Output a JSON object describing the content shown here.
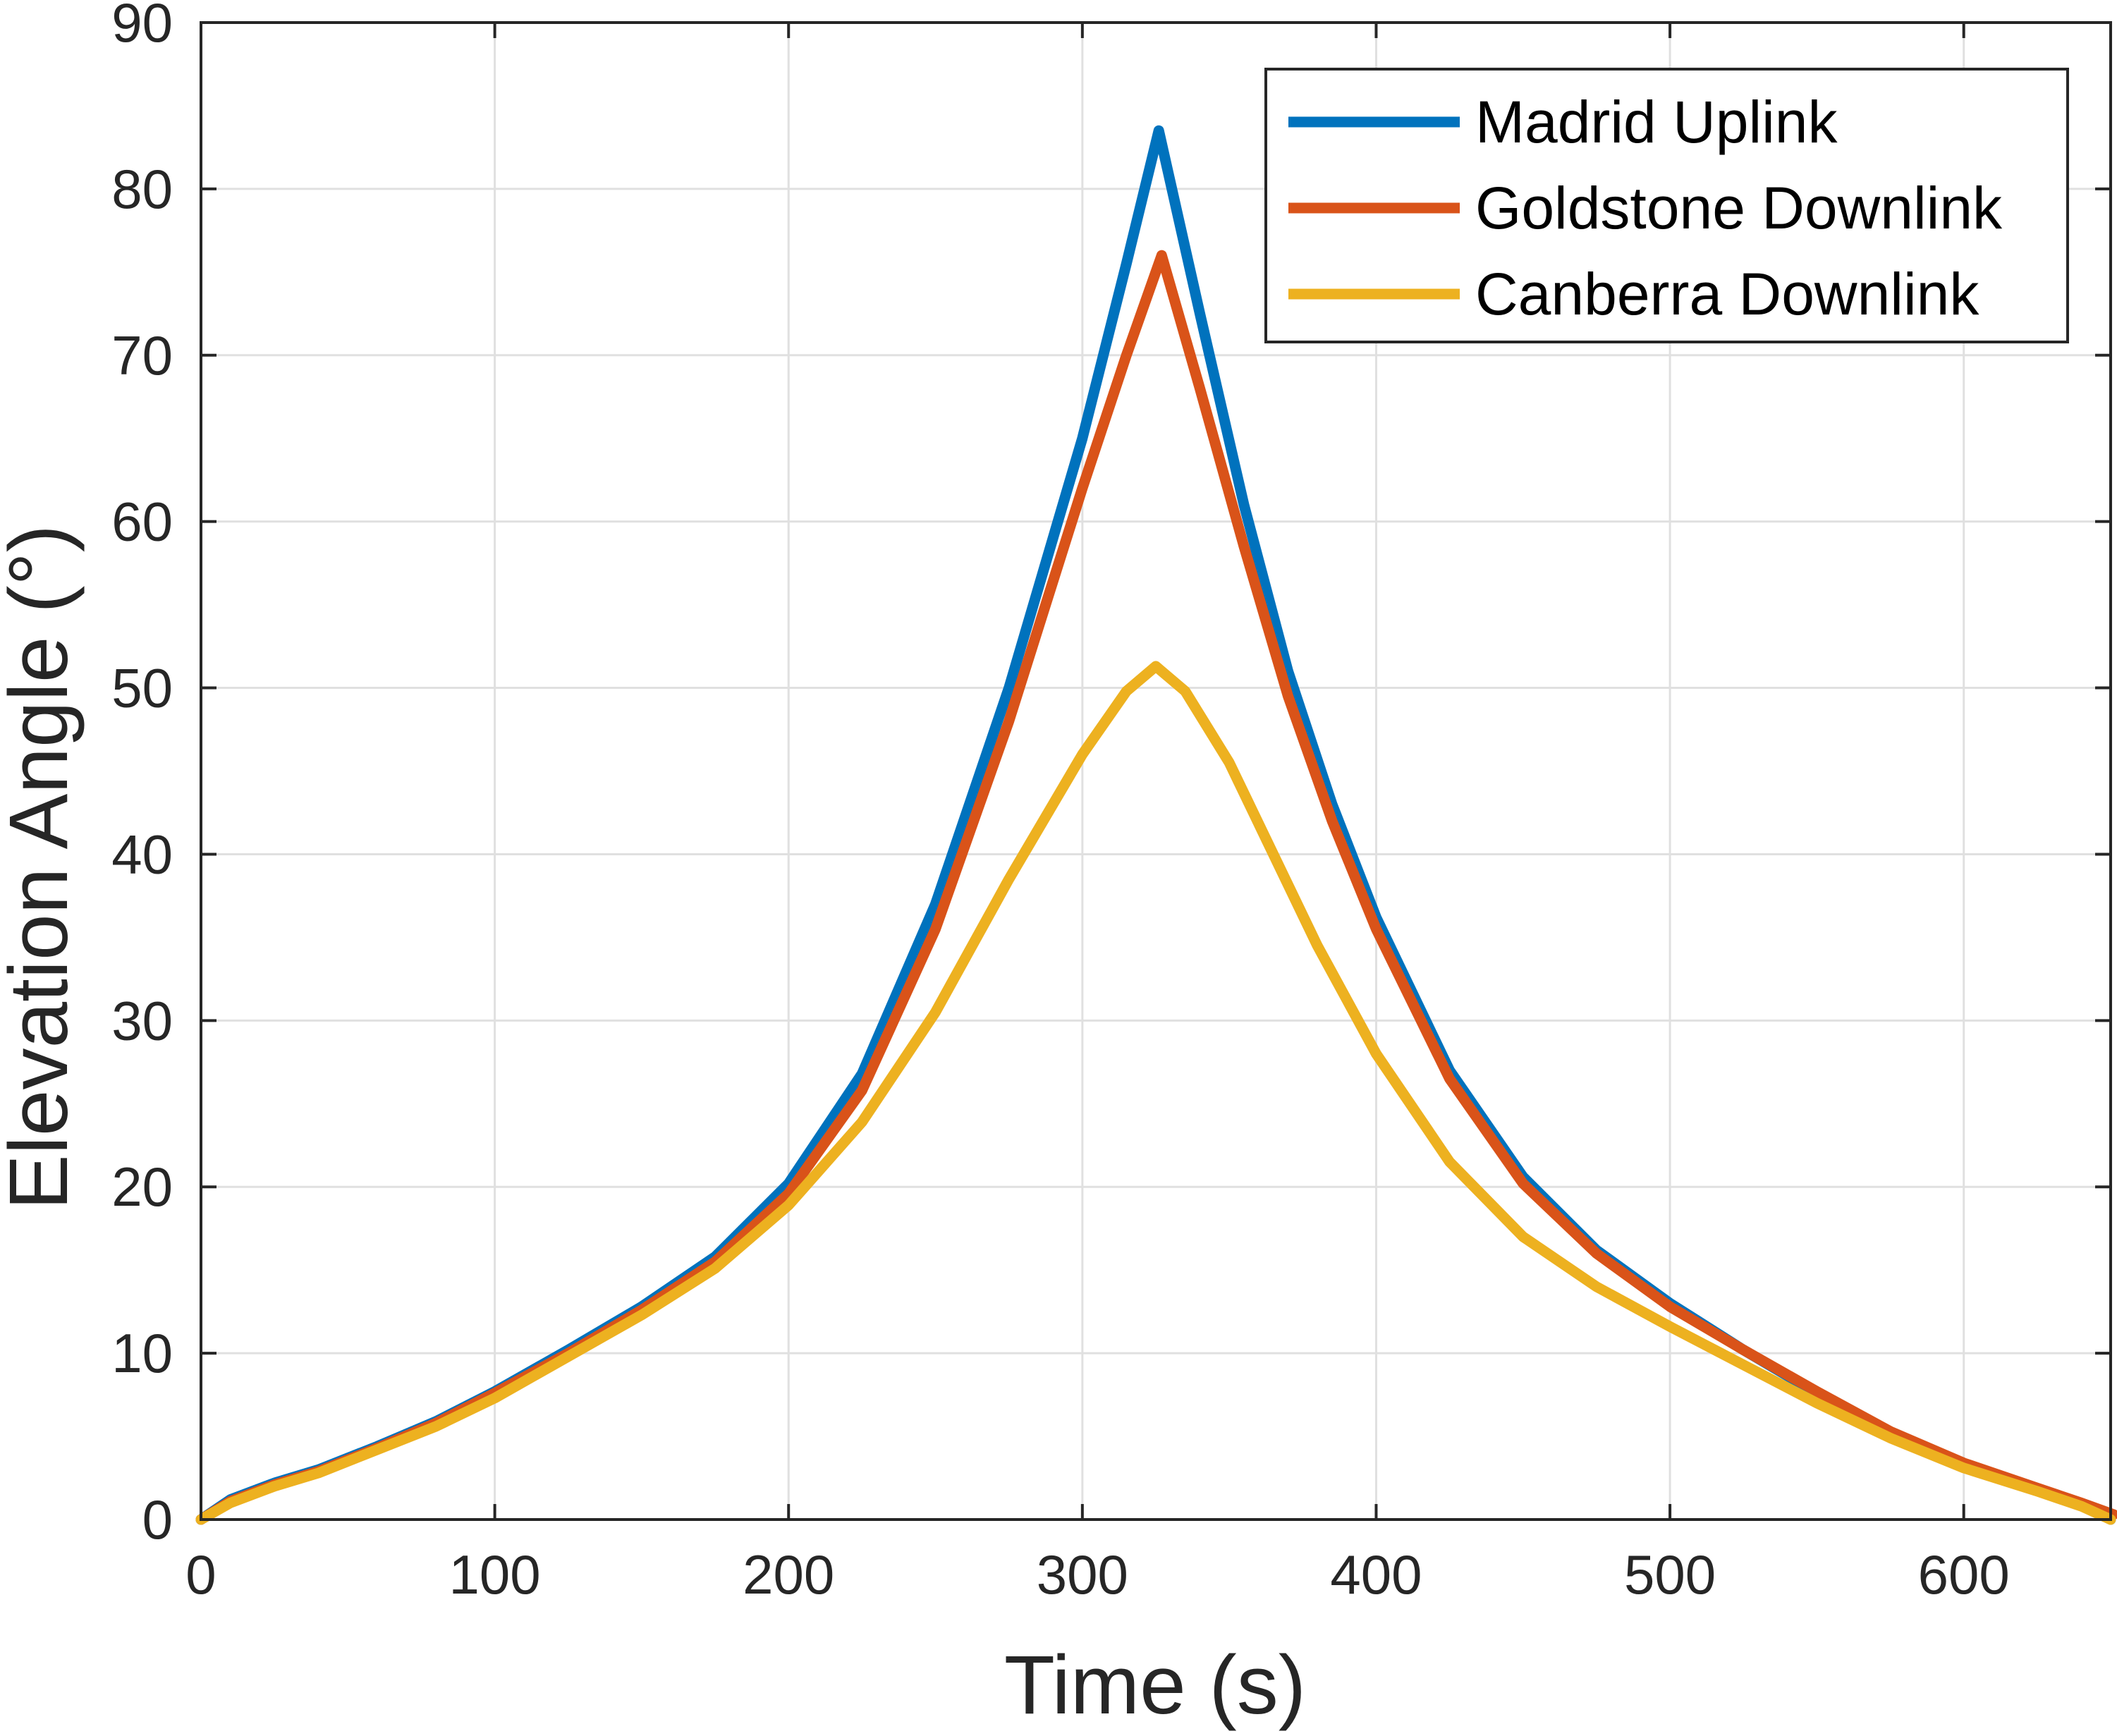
{
  "chart_data": {
    "type": "line",
    "title": "",
    "xlabel": "Time (s)",
    "ylabel": "Elevation Angle (°)",
    "xlim": [
      0,
      650
    ],
    "ylim": [
      0,
      90
    ],
    "xticks": [
      0,
      100,
      200,
      300,
      400,
      500,
      600
    ],
    "yticks": [
      0,
      10,
      20,
      30,
      40,
      50,
      60,
      70,
      80,
      90
    ],
    "grid": true,
    "legend_position": "top-right",
    "series": [
      {
        "name": "Madrid Uplink",
        "color": "#0072BD",
        "x": [
          0,
          10,
          25,
          40,
          60,
          80,
          100,
          125,
          150,
          175,
          200,
          225,
          250,
          275,
          300,
          315,
          326,
          340,
          355,
          370,
          385,
          400,
          425,
          450,
          475,
          500,
          525,
          550,
          575,
          600,
          625,
          640,
          650
        ],
        "y": [
          0,
          1.2,
          2.2,
          3.0,
          4.4,
          5.9,
          7.7,
          10.2,
          12.8,
          15.8,
          20.2,
          26.8,
          37.0,
          50.0,
          65.0,
          75.5,
          83.5,
          72.5,
          61.0,
          51.0,
          43.0,
          36.2,
          27.0,
          20.6,
          16.2,
          13.0,
          10.2,
          7.6,
          5.2,
          3.3,
          1.8,
          0.9,
          0
        ]
      },
      {
        "name": "Goldstone Downlink",
        "color": "#D95319",
        "x": [
          0,
          10,
          25,
          40,
          60,
          80,
          100,
          125,
          150,
          175,
          200,
          225,
          250,
          275,
          300,
          315,
          327,
          340,
          355,
          370,
          385,
          400,
          425,
          450,
          475,
          500,
          525,
          550,
          575,
          600,
          625,
          640,
          651
        ],
        "y": [
          0,
          1.1,
          2.1,
          2.9,
          4.3,
          5.8,
          7.6,
          10.0,
          12.6,
          15.5,
          19.6,
          25.8,
          35.5,
          48.0,
          62.0,
          70.0,
          76.0,
          68.0,
          58.5,
          49.5,
          42.0,
          35.5,
          26.5,
          20.2,
          16.0,
          12.8,
          10.2,
          7.7,
          5.3,
          3.4,
          1.9,
          1.0,
          0.3
        ]
      },
      {
        "name": "Canberra Downlink",
        "color": "#EDB120",
        "x": [
          0,
          10,
          25,
          40,
          60,
          80,
          100,
          125,
          150,
          175,
          200,
          225,
          250,
          275,
          300,
          315,
          325,
          335,
          350,
          365,
          380,
          400,
          425,
          450,
          475,
          500,
          525,
          550,
          575,
          600,
          625,
          640,
          650
        ],
        "y": [
          0,
          1.0,
          2.0,
          2.8,
          4.2,
          5.6,
          7.3,
          9.8,
          12.3,
          15.1,
          18.9,
          23.9,
          30.5,
          38.5,
          46.0,
          49.8,
          51.3,
          49.8,
          45.5,
          40.0,
          34.5,
          28.0,
          21.5,
          17.0,
          14.0,
          11.6,
          9.3,
          7.0,
          4.9,
          3.1,
          1.7,
          0.8,
          0
        ]
      }
    ]
  }
}
